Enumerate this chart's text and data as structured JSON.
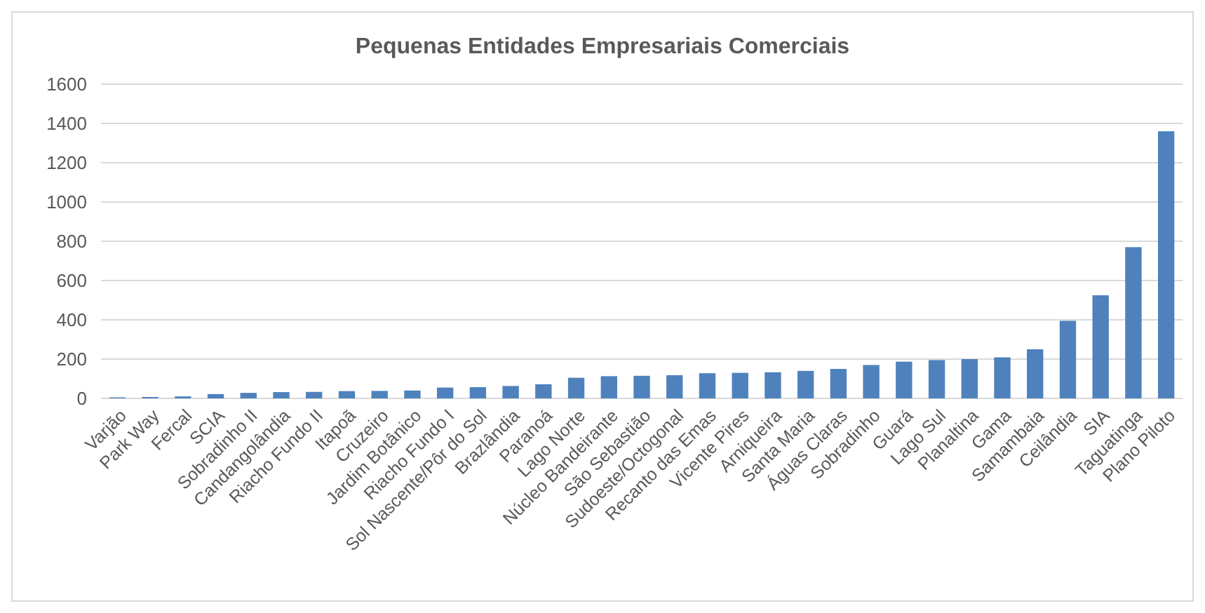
{
  "chart_data": {
    "type": "bar",
    "title": "Pequenas Entidades Empresariais Comerciais",
    "categories": [
      "Varjão",
      "Park Way",
      "Fercal",
      "SCIA",
      "Sobradinho II",
      "Candangolândia",
      "Riacho Fundo II",
      "Itapoã",
      "Cruzeiro",
      "Jardim Botânico",
      "Riacho Fundo I",
      "Sol Nascente/Pôr do Sol",
      "Brazlândia",
      "Paranoá",
      "Lago Norte",
      "Núcleo Bandeirante",
      "São Sebastião",
      "Sudoeste/Octogonal",
      "Recanto das Emas",
      "Vicente Pires",
      "Arniqueira",
      "Santa Maria",
      "Águas Claras",
      "Sobradinho",
      "Guará",
      "Lago Sul",
      "Planaltina",
      "Gama",
      "Samambaia",
      "Ceilândia",
      "SIA",
      "Taguatinga",
      "Plano Piloto"
    ],
    "values": [
      5,
      7,
      10,
      22,
      28,
      32,
      33,
      37,
      38,
      40,
      55,
      57,
      63,
      72,
      105,
      113,
      115,
      118,
      128,
      130,
      133,
      140,
      150,
      170,
      187,
      195,
      200,
      209,
      250,
      395,
      525,
      770,
      1360
    ],
    "color": "#4f81bd",
    "ylim": [
      0,
      1600
    ],
    "yticks": [
      0,
      200,
      400,
      600,
      800,
      1000,
      1200,
      1400,
      1600
    ],
    "grid": "y"
  }
}
